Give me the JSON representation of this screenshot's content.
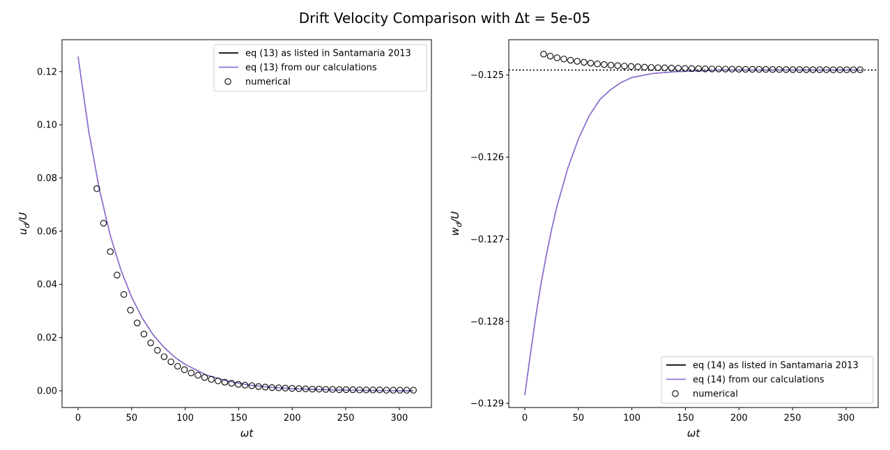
{
  "figure": {
    "title": "Drift Velocity Comparison with Δt =  5e-05"
  },
  "chart_data": [
    {
      "type": "line",
      "xlabel": "ωt",
      "ylabel": "u_d/U",
      "xlim": [
        -15,
        330
      ],
      "ylim": [
        -0.0063,
        0.132
      ],
      "xticks": [
        0,
        50,
        100,
        150,
        200,
        250,
        300
      ],
      "xtick_labels": [
        "0",
        "50",
        "100",
        "150",
        "200",
        "250",
        "300"
      ],
      "yticks": [
        0.0,
        0.02,
        0.04,
        0.06,
        0.08,
        0.1,
        0.12
      ],
      "ytick_labels": [
        "0.00",
        "0.02",
        "0.04",
        "0.06",
        "0.08",
        "0.10",
        "0.12"
      ],
      "grid": false,
      "legend_position": "top-right",
      "series": [
        {
          "name": "eq (13) as listed in Santamaria 2013",
          "kind": "line",
          "color": "#000000",
          "x": [
            0,
            10,
            20,
            30,
            40,
            50,
            60,
            70,
            80,
            90,
            100,
            120,
            140,
            160,
            180,
            200,
            220,
            250,
            280,
            313
          ],
          "y": [
            0.1256,
            0.0974,
            0.0755,
            0.0585,
            0.0454,
            0.0352,
            0.0273,
            0.0211,
            0.0164,
            0.0127,
            0.0099,
            0.0059,
            0.0036,
            0.0021,
            0.0013,
            0.0008,
            0.0005,
            0.0002,
            0.0001,
            0.0
          ]
        },
        {
          "name": "eq (13) from our calculations",
          "kind": "line",
          "color": "#9370db",
          "x": [
            0,
            10,
            20,
            30,
            40,
            50,
            60,
            70,
            80,
            90,
            100,
            120,
            140,
            160,
            180,
            200,
            220,
            250,
            280,
            313
          ],
          "y": [
            0.1256,
            0.0974,
            0.0755,
            0.0585,
            0.0454,
            0.0352,
            0.0273,
            0.0211,
            0.0164,
            0.0127,
            0.0099,
            0.0059,
            0.0036,
            0.0021,
            0.0013,
            0.0008,
            0.0005,
            0.0002,
            0.0001,
            0.0
          ]
        },
        {
          "name": "numerical",
          "kind": "scatter",
          "color": "#000000",
          "x": [
            17.5,
            23.8,
            30.1,
            36.4,
            42.7,
            48.9,
            55.2,
            61.5,
            67.8,
            74.1,
            80.4,
            86.7,
            93.0,
            99.3,
            105.6,
            111.9,
            118.1,
            124.4,
            130.7,
            137.0,
            143.3,
            149.6,
            155.9,
            162.2,
            168.5,
            174.8,
            181.1,
            187.4,
            193.6,
            199.9,
            206.2,
            212.5,
            218.8,
            225.1,
            231.4,
            237.7,
            244.0,
            250.3,
            256.6,
            262.9,
            269.1,
            275.4,
            281.7,
            288.0,
            294.3,
            300.6,
            306.9,
            313.2
          ],
          "y": [
            0.076,
            0.063,
            0.0523,
            0.0435,
            0.0362,
            0.0303,
            0.0255,
            0.0213,
            0.018,
            0.0152,
            0.0128,
            0.0109,
            0.0092,
            0.0079,
            0.0067,
            0.0058,
            0.005,
            0.0043,
            0.0037,
            0.0032,
            0.0028,
            0.0024,
            0.0021,
            0.0019,
            0.0016,
            0.0014,
            0.0012,
            0.0011,
            0.001,
            0.0009,
            0.0008,
            0.0007,
            0.0006,
            0.0006,
            0.0005,
            0.0005,
            0.0004,
            0.0004,
            0.0004,
            0.0003,
            0.0003,
            0.0003,
            0.0003,
            0.0002,
            0.0002,
            0.0002,
            0.0002,
            0.0002
          ]
        }
      ]
    },
    {
      "type": "line",
      "xlabel": "ωt",
      "ylabel": "w_d/U",
      "xlim": [
        -15,
        330
      ],
      "ylim": [
        -0.12905,
        -0.12457
      ],
      "xticks": [
        0,
        50,
        100,
        150,
        200,
        250,
        300
      ],
      "xtick_labels": [
        "0",
        "50",
        "100",
        "150",
        "200",
        "250",
        "300"
      ],
      "yticks": [
        -0.129,
        -0.128,
        -0.127,
        -0.126,
        -0.125
      ],
      "ytick_labels": [
        "−0.129",
        "−0.128",
        "−0.127",
        "−0.126",
        "−0.125"
      ],
      "grid": false,
      "legend_position": "bottom-right",
      "reference_line": {
        "y": -0.12494,
        "style": "dotted",
        "color": "#000000"
      },
      "series": [
        {
          "name": "eq (14) as listed in Santamaria 2013",
          "kind": "line",
          "color": "#000000",
          "x": [
            0,
            5,
            10,
            15,
            20,
            25,
            30,
            40,
            50,
            60,
            70,
            80,
            90,
            100,
            120,
            140,
            160,
            180,
            200,
            230,
            260,
            290,
            313
          ],
          "y": [
            -0.1289,
            -0.12842,
            -0.12796,
            -0.12755,
            -0.1272,
            -0.12688,
            -0.1266,
            -0.12614,
            -0.12578,
            -0.1255,
            -0.1253,
            -0.12518,
            -0.12509,
            -0.12503,
            -0.12498,
            -0.12496,
            -0.12495,
            -0.12494,
            -0.12494,
            -0.12494,
            -0.12494,
            -0.12494,
            -0.12494
          ]
        },
        {
          "name": "eq (14) from our calculations",
          "kind": "line",
          "color": "#9370db",
          "x": [
            0,
            5,
            10,
            15,
            20,
            25,
            30,
            40,
            50,
            60,
            70,
            80,
            90,
            100,
            120,
            140,
            160,
            180,
            200,
            230,
            260,
            290,
            313
          ],
          "y": [
            -0.1289,
            -0.12842,
            -0.12796,
            -0.12755,
            -0.1272,
            -0.12688,
            -0.1266,
            -0.12614,
            -0.12578,
            -0.1255,
            -0.1253,
            -0.12518,
            -0.12509,
            -0.12503,
            -0.12498,
            -0.12496,
            -0.12495,
            -0.12494,
            -0.12494,
            -0.12494,
            -0.12494,
            -0.12494,
            -0.12494
          ]
        },
        {
          "name": "numerical",
          "kind": "scatter",
          "color": "#000000",
          "x": [
            17.5,
            23.8,
            30.1,
            36.4,
            42.7,
            48.9,
            55.2,
            61.5,
            67.8,
            74.1,
            80.4,
            86.7,
            93.0,
            99.3,
            105.6,
            111.9,
            118.1,
            124.4,
            130.7,
            137.0,
            143.3,
            149.6,
            155.9,
            162.2,
            168.5,
            174.8,
            181.1,
            187.4,
            193.6,
            199.9,
            206.2,
            212.5,
            218.8,
            225.1,
            231.4,
            237.7,
            244.0,
            250.3,
            256.6,
            262.9,
            269.1,
            275.4,
            281.7,
            288.0,
            294.3,
            300.6,
            306.9,
            313.2
          ],
          "y": [
            -0.124745,
            -0.12477,
            -0.12479,
            -0.124805,
            -0.12482,
            -0.124833,
            -0.124845,
            -0.124855,
            -0.124865,
            -0.124872,
            -0.12488,
            -0.124886,
            -0.124891,
            -0.124896,
            -0.1249,
            -0.124904,
            -0.124908,
            -0.124911,
            -0.124913,
            -0.124916,
            -0.124918,
            -0.12492,
            -0.124922,
            -0.124923,
            -0.124925,
            -0.124926,
            -0.124927,
            -0.124928,
            -0.124929,
            -0.12493,
            -0.124931,
            -0.124931,
            -0.124932,
            -0.124932,
            -0.124933,
            -0.124933,
            -0.124934,
            -0.124934,
            -0.124934,
            -0.124935,
            -0.124935,
            -0.124935,
            -0.124935,
            -0.124936,
            -0.124936,
            -0.124936,
            -0.124936,
            -0.124936
          ]
        }
      ]
    }
  ]
}
